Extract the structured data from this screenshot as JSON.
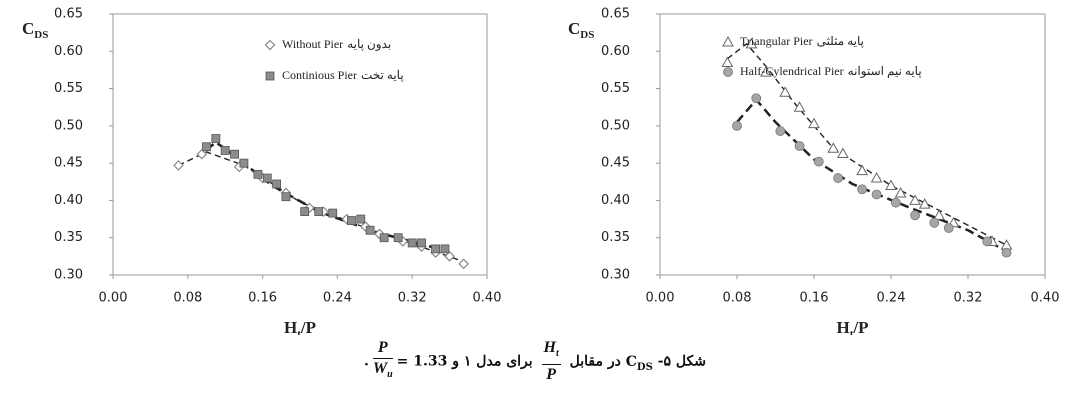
{
  "chart_data": [
    {
      "type": "scatter",
      "ylabel": "C",
      "ylabel_sub": "DS",
      "xlabel": "H",
      "xlabel_sub": "t",
      "xlabel_end": "/P",
      "xlim": [
        0,
        0.4
      ],
      "ylim": [
        0.3,
        0.65
      ],
      "xticks": [
        {
          "value": 0,
          "label": "0.00"
        },
        0.08,
        0.16,
        0.24,
        0.32,
        {
          "value": 0.4,
          "label": "0.40"
        }
      ],
      "yticks": [
        {
          "value": 0.3,
          "label": "0.30"
        },
        0.35,
        {
          "value": 0.4,
          "label": "0.40"
        },
        0.45,
        {
          "value": 0.5,
          "label": "0.50"
        },
        0.55,
        {
          "value": 0.6,
          "label": "0.60"
        },
        0.65
      ],
      "series": [
        {
          "name": "Without Pier",
          "name_fa": "بدون پایه",
          "marker": "diamond",
          "color": "#888888",
          "x": [
            0.07,
            0.095,
            0.135,
            0.16,
            0.185,
            0.21,
            0.225,
            0.25,
            0.27,
            0.285,
            0.31,
            0.33,
            0.345,
            0.36,
            0.375
          ],
          "values": [
            0.447,
            0.462,
            0.445,
            0.43,
            0.41,
            0.39,
            0.385,
            0.375,
            0.365,
            0.355,
            0.345,
            0.338,
            0.33,
            0.325,
            0.315
          ],
          "fit": {
            "x": [
              0.07,
              0.1,
              0.14,
              0.2,
              0.26,
              0.32,
              0.375
            ],
            "y": [
              0.447,
              0.465,
              0.447,
              0.398,
              0.368,
              0.342,
              0.318
            ]
          }
        },
        {
          "name": "Continious Pier",
          "name_fa": "پایه تخت",
          "marker": "square",
          "color": "#8c8c8c",
          "x": [
            0.1,
            0.11,
            0.12,
            0.13,
            0.14,
            0.155,
            0.165,
            0.175,
            0.185,
            0.205,
            0.22,
            0.235,
            0.255,
            0.265,
            0.275,
            0.29,
            0.305,
            0.32,
            0.33,
            0.345,
            0.355
          ],
          "values": [
            0.472,
            0.483,
            0.467,
            0.462,
            0.45,
            0.435,
            0.43,
            0.422,
            0.405,
            0.385,
            0.385,
            0.383,
            0.373,
            0.375,
            0.36,
            0.35,
            0.35,
            0.343,
            0.343,
            0.335,
            0.335
          ],
          "fit": {
            "x": [
              0.1,
              0.11,
              0.13,
              0.17,
              0.22,
              0.28,
              0.355
            ],
            "y": [
              0.468,
              0.478,
              0.46,
              0.42,
              0.385,
              0.358,
              0.333
            ]
          }
        }
      ]
    },
    {
      "type": "scatter",
      "ylabel": "C",
      "ylabel_sub": "DS",
      "xlabel": "H",
      "xlabel_sub": "t",
      "xlabel_end": "/P",
      "xlim": [
        0,
        0.4
      ],
      "ylim": [
        0.3,
        0.65
      ],
      "xticks": [
        {
          "value": 0,
          "label": "0.00"
        },
        0.08,
        0.16,
        0.24,
        0.32,
        {
          "value": 0.4,
          "label": "0.40"
        }
      ],
      "yticks": [
        {
          "value": 0.3,
          "label": "0.30"
        },
        0.35,
        {
          "value": 0.4,
          "label": "0.40"
        },
        0.45,
        {
          "value": 0.5,
          "label": "0.50"
        },
        0.55,
        {
          "value": 0.6,
          "label": "0.60"
        },
        0.65
      ],
      "series": [
        {
          "name": "Triangular Pier",
          "name_fa": "پایه مثلثی",
          "marker": "triangle",
          "color": "#888888",
          "x": [
            0.07,
            0.095,
            0.11,
            0.13,
            0.145,
            0.16,
            0.18,
            0.19,
            0.21,
            0.225,
            0.24,
            0.25,
            0.265,
            0.275,
            0.29,
            0.305,
            0.345,
            0.36
          ],
          "values": [
            0.585,
            0.61,
            0.572,
            0.545,
            0.525,
            0.503,
            0.47,
            0.463,
            0.44,
            0.43,
            0.42,
            0.41,
            0.4,
            0.395,
            0.38,
            0.37,
            0.345,
            0.34
          ],
          "fit": {
            "x": [
              0.07,
              0.09,
              0.11,
              0.14,
              0.18,
              0.24,
              0.3,
              0.36
            ],
            "y": [
              0.59,
              0.61,
              0.58,
              0.53,
              0.47,
              0.42,
              0.38,
              0.34
            ]
          }
        },
        {
          "name": "Half-Cylendrical Pier",
          "name_fa": "پایه نیم استوانه",
          "marker": "circle",
          "color": "#a6a6a6",
          "x": [
            0.08,
            0.1,
            0.125,
            0.145,
            0.165,
            0.185,
            0.21,
            0.225,
            0.245,
            0.265,
            0.285,
            0.3,
            0.34,
            0.36
          ],
          "values": [
            0.5,
            0.537,
            0.493,
            0.473,
            0.452,
            0.43,
            0.415,
            0.408,
            0.397,
            0.38,
            0.37,
            0.363,
            0.345,
            0.33
          ],
          "fit": {
            "x": [
              0.08,
              0.1,
              0.12,
              0.16,
              0.2,
              0.26,
              0.32,
              0.36
            ],
            "y": [
              0.505,
              0.535,
              0.505,
              0.455,
              0.422,
              0.39,
              0.36,
              0.332
            ]
          }
        }
      ]
    }
  ],
  "caption": {
    "prefix": "شکل ۵-",
    "c": "C",
    "c_sub": "DS",
    "mid": "در مقابل",
    "frac1_num": "H",
    "frac1_num_sub": "t",
    "frac1_den": "P",
    "mid2": "برای مدل ۱ و",
    "frac2_num": "P",
    "frac2_den": "W",
    "frac2_den_sub": "u",
    "eq": "= 1.33",
    "end": "."
  }
}
